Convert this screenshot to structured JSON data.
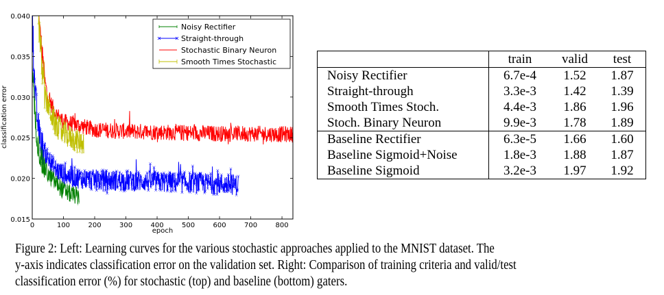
{
  "chart_data": {
    "type": "line",
    "title": "",
    "xlabel": "epoch",
    "ylabel": "classification error",
    "xlim": [
      0,
      835
    ],
    "ylim": [
      0.015,
      0.04
    ],
    "xticks": [
      "0",
      "100",
      "200",
      "300",
      "400",
      "500",
      "600",
      "700",
      "800"
    ],
    "yticks": [
      "0.015",
      "0.020",
      "0.025",
      "0.030",
      "0.035",
      "0.040"
    ],
    "grid": false,
    "legend_position": "upper right",
    "series": [
      {
        "name": "Noisy Rectifier",
        "color": "#008000",
        "marker": "|",
        "epochs": 150,
        "x": [
          0,
          5,
          10,
          20,
          30,
          50,
          75,
          100,
          125,
          150
        ],
        "values": [
          0.034,
          0.03,
          0.027,
          0.024,
          0.022,
          0.0205,
          0.0195,
          0.0185,
          0.018,
          0.0178
        ]
      },
      {
        "name": "Straight-through",
        "color": "#0000ff",
        "marker": "x",
        "epochs": 660,
        "x": [
          0,
          5,
          10,
          20,
          30,
          50,
          75,
          100,
          150,
          200,
          300,
          400,
          500,
          600,
          660
        ],
        "values": [
          0.04,
          0.034,
          0.03,
          0.026,
          0.024,
          0.0225,
          0.021,
          0.0205,
          0.02,
          0.0198,
          0.0197,
          0.0196,
          0.0195,
          0.0193,
          0.0192
        ]
      },
      {
        "name": "Stochastic Binary Neuron",
        "color": "#ff0000",
        "marker": "",
        "epochs": 835,
        "x": [
          20,
          30,
          40,
          50,
          75,
          100,
          150,
          200,
          300,
          400,
          500,
          600,
          700,
          835
        ],
        "values": [
          0.04,
          0.036,
          0.032,
          0.03,
          0.028,
          0.027,
          0.0265,
          0.026,
          0.0258,
          0.0257,
          0.0256,
          0.0255,
          0.0255,
          0.0254
        ]
      },
      {
        "name": "Smooth Times Stochastic",
        "color": "#bfbf00",
        "marker": "+",
        "epochs": 165,
        "x": [
          20,
          25,
          30,
          40,
          50,
          60,
          75,
          100,
          125,
          150,
          165
        ],
        "values": [
          0.04,
          0.037,
          0.034,
          0.03,
          0.029,
          0.028,
          0.0265,
          0.0255,
          0.025,
          0.0245,
          0.0245
        ]
      }
    ]
  },
  "table": {
    "columns": [
      "",
      "train",
      "valid",
      "test"
    ],
    "stochastic_rows": [
      {
        "name": "Noisy Rectifier",
        "train": "6.7e-4",
        "valid": "1.52",
        "test": "1.87"
      },
      {
        "name": "Straight-through",
        "train": "3.3e-3",
        "valid": "1.42",
        "test": "1.39"
      },
      {
        "name": "Smooth Times Stoch.",
        "train": "4.4e-3",
        "valid": "1.86",
        "test": "1.96"
      },
      {
        "name": "Stoch. Binary Neuron",
        "train": "9.9e-3",
        "valid": "1.78",
        "test": "1.89"
      }
    ],
    "baseline_rows": [
      {
        "name": "Baseline Rectifier",
        "train": "6.3e-5",
        "valid": "1.66",
        "test": "1.60"
      },
      {
        "name": "Baseline Sigmoid+Noise",
        "train": "1.8e-3",
        "valid": "1.88",
        "test": "1.87"
      },
      {
        "name": "Baseline Sigmoid",
        "train": "3.2e-3",
        "valid": "1.97",
        "test": "1.92"
      }
    ]
  },
  "caption": {
    "line1": "Figure 2:  Left: Learning curves for the various stochastic approaches applied to the MNIST dataset.  The",
    "line2": "y-axis indicates classification error on the validation set.  Right: Comparison of training criteria and valid/test",
    "line3": "classification error (%) for stochastic (top) and baseline (bottom) gaters."
  }
}
